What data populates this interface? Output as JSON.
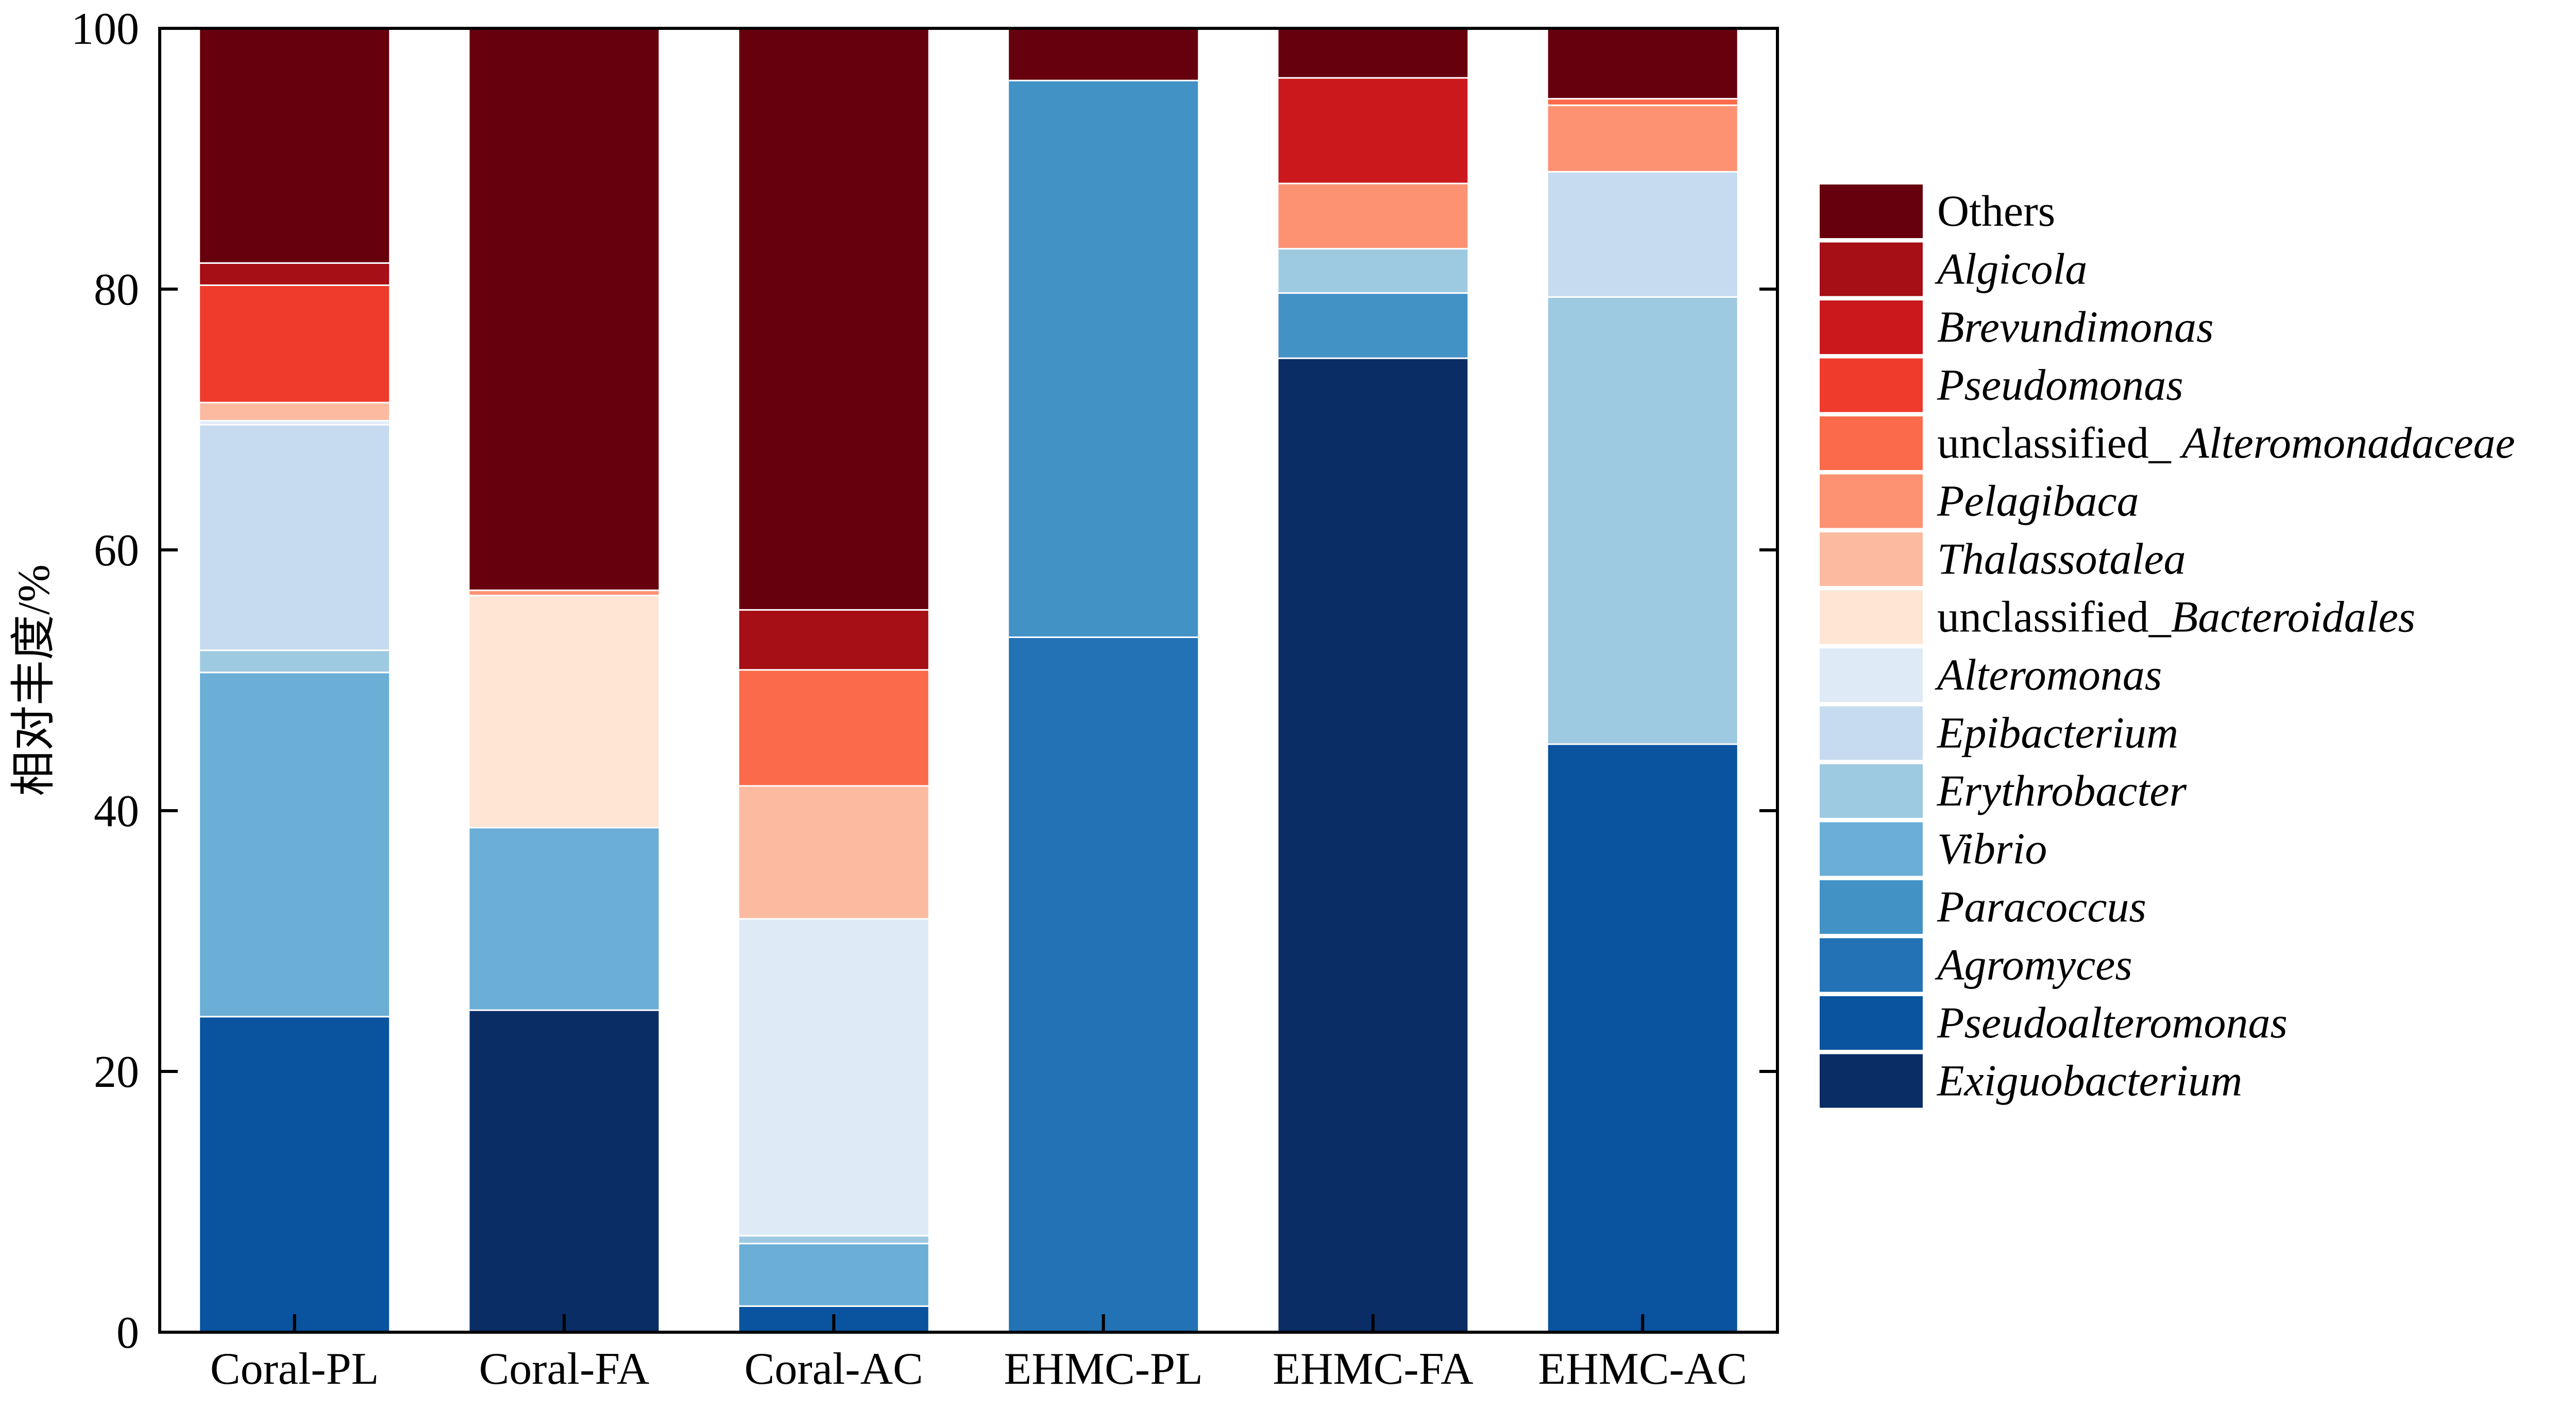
{
  "chart_data": {
    "type": "bar",
    "stacked": true,
    "title": "",
    "xlabel": "",
    "ylabel": "相对丰度/%",
    "ylim": [
      0,
      100
    ],
    "yticks": [
      0,
      20,
      40,
      60,
      80,
      100
    ],
    "grid": false,
    "legend_position": "right",
    "categories": [
      "Coral-PL",
      "Coral-FA",
      "Coral-AC",
      "EHMC-PL",
      "EHMC-FA",
      "EHMC-AC"
    ],
    "series": [
      {
        "name": "Exiguobacterium",
        "italic": true,
        "color": "#0b2d66",
        "values": [
          0,
          24.7,
          0,
          0,
          74.7,
          0
        ]
      },
      {
        "name": "Pseudoalteromonas",
        "italic": true,
        "color": "#0a539f",
        "values": [
          24.2,
          0,
          2.0,
          0,
          0,
          45.1
        ]
      },
      {
        "name": "Agromyces",
        "italic": true,
        "color": "#2272b5",
        "values": [
          0,
          0,
          0,
          53.3,
          0,
          0
        ]
      },
      {
        "name": "Paracoccus",
        "italic": true,
        "color": "#4292c6",
        "values": [
          0,
          0,
          0,
          42.7,
          5.0,
          0
        ]
      },
      {
        "name": "Vibrio",
        "italic": true,
        "color": "#6baed6",
        "values": [
          26.4,
          14.0,
          4.8,
          0,
          0,
          0
        ]
      },
      {
        "name": "Erythrobacter",
        "italic": true,
        "color": "#9ecae1",
        "values": [
          1.7,
          0,
          0.6,
          0,
          3.4,
          34.3
        ]
      },
      {
        "name": "Epibacterium",
        "italic": true,
        "color": "#c6dbef",
        "values": [
          17.3,
          0,
          0,
          0,
          0,
          9.6
        ]
      },
      {
        "name": "Alteromonas",
        "italic": true,
        "color": "#deebf7",
        "values": [
          0.3,
          0,
          24.3,
          0,
          0,
          0
        ]
      },
      {
        "name": "unclassified_Bacteroidales",
        "prefix": "unclassified_",
        "italic_part": "Bacteroidales",
        "color": "#fee5d4",
        "values": [
          0,
          17.8,
          0,
          0,
          0,
          0
        ]
      },
      {
        "name": "Thalassotalea",
        "italic": true,
        "color": "#fcbba1",
        "values": [
          1.4,
          0,
          10.2,
          0,
          0,
          0
        ]
      },
      {
        "name": "Pelagibaca",
        "italic": true,
        "color": "#fc9272",
        "values": [
          0,
          0.4,
          0,
          0,
          5.0,
          5.1
        ]
      },
      {
        "name": "unclassified_ Alteromonadaceae",
        "prefix": "unclassified_ ",
        "italic_part": "Alteromonadaceae",
        "color": "#fb6a4a",
        "values": [
          0,
          0,
          8.9,
          0,
          0,
          0.5
        ]
      },
      {
        "name": "Pseudomonas",
        "italic": true,
        "color": "#ef3b2c",
        "values": [
          9.0,
          0,
          0,
          0,
          0,
          0
        ]
      },
      {
        "name": "Brevundimonas",
        "italic": true,
        "color": "#cb181d",
        "values": [
          0,
          0,
          0,
          0,
          8.1,
          0
        ]
      },
      {
        "name": "Algicola",
        "italic": true,
        "color": "#a50f15",
        "values": [
          1.7,
          0,
          4.6,
          0,
          0,
          0
        ]
      },
      {
        "name": "Others",
        "italic": false,
        "color": "#67000d",
        "values": [
          18.0,
          43.1,
          44.6,
          4.0,
          3.8,
          5.4
        ]
      }
    ]
  }
}
